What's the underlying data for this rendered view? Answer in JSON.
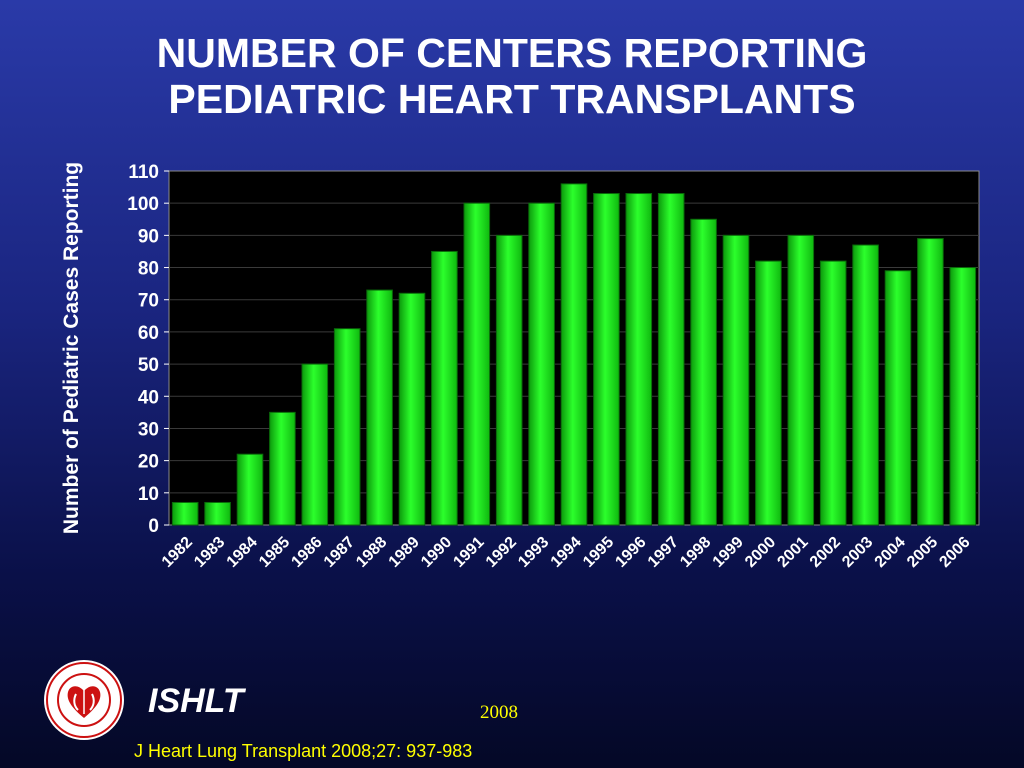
{
  "title_line1": "NUMBER OF CENTERS REPORTING",
  "title_line2": "PEDIATRIC HEART TRANSPLANTS",
  "footer": {
    "org": "ISHLT",
    "year": "2008",
    "citation": "J Heart Lung Transplant 2008;27: 937-983"
  },
  "colors": {
    "bar": "#1fe81f",
    "bar_edge": "#0a6a0a",
    "plot_bg": "#000000",
    "title": "#ffffff",
    "footer_text": "#ffff00"
  },
  "chart_data": {
    "type": "bar",
    "title": "NUMBER OF CENTERS REPORTING PEDIATRIC HEART TRANSPLANTS",
    "xlabel": "",
    "ylabel": "Number of Pediatric Cases Reporting",
    "ylim": [
      0,
      110
    ],
    "yticks": [
      0,
      10,
      20,
      30,
      40,
      50,
      60,
      70,
      80,
      90,
      100,
      110
    ],
    "grid": true,
    "categories": [
      "1982",
      "1983",
      "1984",
      "1985",
      "1986",
      "1987",
      "1988",
      "1989",
      "1990",
      "1991",
      "1992",
      "1993",
      "1994",
      "1995",
      "1996",
      "1997",
      "1998",
      "1999",
      "2000",
      "2001",
      "2002",
      "2003",
      "2004",
      "2005",
      "2006"
    ],
    "values": [
      7,
      7,
      22,
      35,
      50,
      61,
      73,
      72,
      85,
      100,
      90,
      100,
      106,
      103,
      103,
      103,
      95,
      90,
      82,
      90,
      82,
      87,
      79,
      89,
      80
    ]
  }
}
